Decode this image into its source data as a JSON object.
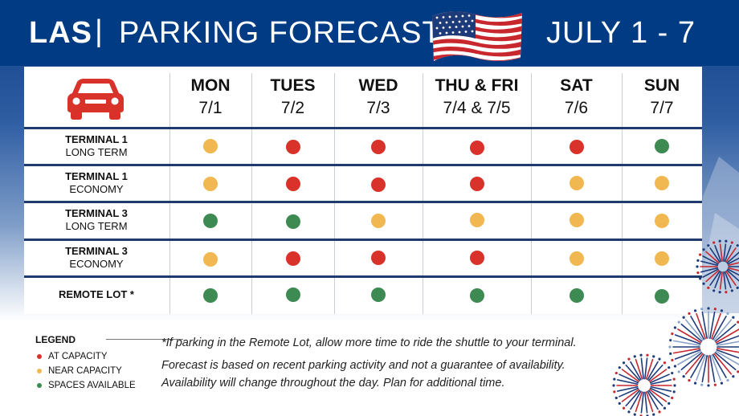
{
  "header": {
    "airport": "LAS",
    "separator": "|",
    "title": "PARKING FORECAST",
    "dates": "JULY 1 - 7"
  },
  "days": [
    {
      "day": "MON",
      "date": "7/1"
    },
    {
      "day": "TUES",
      "date": "7/2"
    },
    {
      "day": "WED",
      "date": "7/3"
    },
    {
      "day": "THU & FRI",
      "date": "7/4 & 7/5"
    },
    {
      "day": "SAT",
      "date": "7/6"
    },
    {
      "day": "SUN",
      "date": "7/7"
    }
  ],
  "lots": [
    {
      "name": "TERMINAL 1",
      "sub": "LONG TERM",
      "status": [
        "near",
        "at",
        "at",
        "at",
        "at",
        "available"
      ]
    },
    {
      "name": "TERMINAL 1",
      "sub": "ECONOMY",
      "status": [
        "near",
        "at",
        "at",
        "at",
        "near",
        "near"
      ]
    },
    {
      "name": "TERMINAL 3",
      "sub": "LONG TERM",
      "status": [
        "available",
        "available",
        "near",
        "near",
        "near",
        "near"
      ]
    },
    {
      "name": "TERMINAL 3",
      "sub": "ECONOMY",
      "status": [
        "near",
        "at",
        "at",
        "at",
        "near",
        "near"
      ]
    },
    {
      "name": "REMOTE LOT *",
      "sub": "",
      "status": [
        "available",
        "available",
        "available",
        "available",
        "available",
        "available"
      ]
    }
  ],
  "colors": {
    "at": "#d9322a",
    "near": "#f1b851",
    "available": "#3d8a52",
    "header_bg": "#003b84",
    "car": "#d9322a"
  },
  "legend": {
    "title": "LEGEND",
    "items": [
      {
        "label": "AT CAPACITY",
        "status": "at"
      },
      {
        "label": "NEAR CAPACITY",
        "status": "near"
      },
      {
        "label": "SPACES AVAILABLE",
        "status": "available"
      }
    ]
  },
  "notes": {
    "remote": "*If parking in the Remote Lot, allow more time to ride the shuttle to your terminal.",
    "line1": "Forecast is based on recent parking activity and not a guarantee of availability.",
    "line2": "Availability will change throughout the day. Plan for additional time."
  },
  "icons": {
    "car": "car-icon",
    "flag": "us-flag-icon",
    "fireworks": "fireworks-icon"
  }
}
